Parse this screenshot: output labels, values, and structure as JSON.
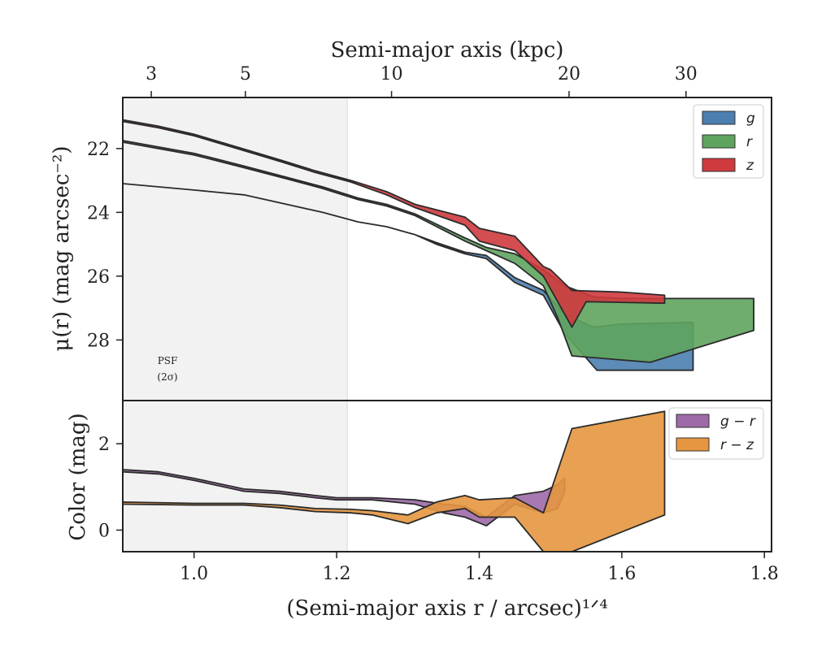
{
  "chart_data": [
    {
      "type": "area",
      "panel": "surface-brightness",
      "ylabel": "μ(r) (mag arcsec⁻²)",
      "ylim": [
        29.9,
        20.4
      ],
      "yticks": [
        "22",
        "24",
        "26",
        "28"
      ],
      "top_axis": {
        "label": "Semi-major axis (kpc)",
        "ticks": [
          {
            "label": "3",
            "x": 0.94
          },
          {
            "label": "5",
            "x": 1.072
          },
          {
            "label": "10",
            "x": 1.277
          },
          {
            "label": "20",
            "x": 1.526
          },
          {
            "label": "30",
            "x": 1.69
          }
        ]
      },
      "psf_label": [
        "PSF",
        "(2σ)"
      ],
      "psf_boundary_x": 1.215,
      "legend": {
        "placement": "top-right",
        "entries": [
          "g",
          "r",
          "z"
        ]
      },
      "series": [
        {
          "name": "g",
          "color": "#4c7fb0",
          "upper": [
            [
              0.9,
              23.1
            ],
            [
              1.0,
              23.3
            ],
            [
              1.07,
              23.45
            ],
            [
              1.13,
              23.75
            ],
            [
              1.18,
              24.0
            ],
            [
              1.23,
              24.3
            ],
            [
              1.27,
              24.45
            ],
            [
              1.31,
              24.7
            ],
            [
              1.34,
              24.95
            ],
            [
              1.38,
              25.25
            ],
            [
              1.41,
              25.35
            ],
            [
              1.45,
              26.05
            ],
            [
              1.49,
              26.45
            ],
            [
              1.52,
              27.2
            ],
            [
              1.56,
              27.6
            ],
            [
              1.6,
              27.5
            ],
            [
              1.7,
              27.45
            ]
          ],
          "lower": [
            [
              0.9,
              23.1
            ],
            [
              1.0,
              23.3
            ],
            [
              1.07,
              23.45
            ],
            [
              1.13,
              23.75
            ],
            [
              1.18,
              24.0
            ],
            [
              1.23,
              24.3
            ],
            [
              1.27,
              24.45
            ],
            [
              1.31,
              24.7
            ],
            [
              1.34,
              25.0
            ],
            [
              1.38,
              25.3
            ],
            [
              1.41,
              25.45
            ],
            [
              1.45,
              26.2
            ],
            [
              1.49,
              26.6
            ],
            [
              1.52,
              27.8
            ],
            [
              1.565,
              28.95
            ],
            [
              1.7,
              28.95
            ]
          ]
        },
        {
          "name": "r",
          "color": "#5fa45e",
          "upper": [
            [
              0.9,
              21.75
            ],
            [
              1.0,
              22.15
            ],
            [
              1.07,
              22.55
            ],
            [
              1.13,
              22.9
            ],
            [
              1.18,
              23.2
            ],
            [
              1.23,
              23.55
            ],
            [
              1.27,
              23.75
            ],
            [
              1.31,
              24.05
            ],
            [
              1.38,
              24.8
            ],
            [
              1.41,
              25.1
            ],
            [
              1.45,
              25.3
            ],
            [
              1.49,
              25.8
            ],
            [
              1.52,
              26.3
            ],
            [
              1.56,
              26.65
            ],
            [
              1.6,
              26.7
            ],
            [
              1.785,
              26.7
            ]
          ],
          "lower": [
            [
              0.9,
              21.8
            ],
            [
              1.0,
              22.2
            ],
            [
              1.07,
              22.6
            ],
            [
              1.13,
              22.95
            ],
            [
              1.18,
              23.25
            ],
            [
              1.23,
              23.6
            ],
            [
              1.27,
              23.8
            ],
            [
              1.31,
              24.1
            ],
            [
              1.38,
              24.9
            ],
            [
              1.41,
              25.2
            ],
            [
              1.45,
              25.6
            ],
            [
              1.49,
              26.3
            ],
            [
              1.51,
              27.3
            ],
            [
              1.53,
              28.5
            ],
            [
              1.64,
              28.7
            ],
            [
              1.785,
              27.7
            ]
          ]
        },
        {
          "name": "z",
          "color": "#cf3a3e",
          "upper": [
            [
              0.9,
              21.1
            ],
            [
              0.95,
              21.3
            ],
            [
              1.0,
              21.55
            ],
            [
              1.06,
              21.95
            ],
            [
              1.12,
              22.35
            ],
            [
              1.17,
              22.7
            ],
            [
              1.22,
              23.0
            ],
            [
              1.27,
              23.35
            ],
            [
              1.31,
              23.75
            ],
            [
              1.38,
              24.15
            ],
            [
              1.4,
              24.5
            ],
            [
              1.45,
              24.75
            ],
            [
              1.49,
              25.7
            ],
            [
              1.5,
              25.8
            ],
            [
              1.53,
              26.45
            ],
            [
              1.6,
              26.5
            ],
            [
              1.66,
              26.6
            ]
          ],
          "lower": [
            [
              0.9,
              21.15
            ],
            [
              0.95,
              21.35
            ],
            [
              1.0,
              21.6
            ],
            [
              1.06,
              22.0
            ],
            [
              1.12,
              22.4
            ],
            [
              1.17,
              22.75
            ],
            [
              1.22,
              23.05
            ],
            [
              1.27,
              23.45
            ],
            [
              1.31,
              23.85
            ],
            [
              1.38,
              24.4
            ],
            [
              1.4,
              24.9
            ],
            [
              1.45,
              25.2
            ],
            [
              1.49,
              26.0
            ],
            [
              1.53,
              27.6
            ],
            [
              1.55,
              26.8
            ],
            [
              1.66,
              26.85
            ]
          ]
        }
      ]
    },
    {
      "type": "area",
      "panel": "color",
      "xlabel": "(Semi-major axis r / arcsec)¹ᐟ⁴",
      "ylabel": "Color (mag)",
      "xlim": [
        0.9,
        1.81
      ],
      "ylim": [
        -0.5,
        3.0
      ],
      "xticks": [
        "1.0",
        "1.2",
        "1.4",
        "1.6",
        "1.8"
      ],
      "yticks": [
        "0",
        "2"
      ],
      "legend": {
        "placement": "top-right",
        "entries": [
          "g − r",
          "r − z"
        ]
      },
      "series": [
        {
          "name": "g − r",
          "color": "#9e6aa7",
          "upper": [
            [
              0.9,
              1.4
            ],
            [
              0.95,
              1.35
            ],
            [
              1.0,
              1.2
            ],
            [
              1.07,
              0.95
            ],
            [
              1.12,
              0.9
            ],
            [
              1.17,
              0.8
            ],
            [
              1.2,
              0.75
            ],
            [
              1.25,
              0.75
            ],
            [
              1.31,
              0.7
            ],
            [
              1.35,
              0.6
            ],
            [
              1.38,
              0.55
            ],
            [
              1.41,
              0.3
            ],
            [
              1.45,
              0.8
            ],
            [
              1.49,
              0.9
            ],
            [
              1.51,
              1.05
            ],
            [
              1.52,
              1.2
            ]
          ],
          "lower": [
            [
              0.9,
              1.35
            ],
            [
              0.95,
              1.3
            ],
            [
              1.0,
              1.15
            ],
            [
              1.07,
              0.9
            ],
            [
              1.12,
              0.85
            ],
            [
              1.17,
              0.75
            ],
            [
              1.2,
              0.7
            ],
            [
              1.25,
              0.7
            ],
            [
              1.31,
              0.6
            ],
            [
              1.35,
              0.4
            ],
            [
              1.38,
              0.3
            ],
            [
              1.41,
              0.1
            ],
            [
              1.45,
              0.6
            ],
            [
              1.49,
              0.4
            ],
            [
              1.51,
              0.5
            ],
            [
              1.52,
              0.9
            ]
          ]
        },
        {
          "name": "r − z",
          "color": "#e69640",
          "upper": [
            [
              0.9,
              0.65
            ],
            [
              1.0,
              0.62
            ],
            [
              1.07,
              0.62
            ],
            [
              1.12,
              0.58
            ],
            [
              1.17,
              0.5
            ],
            [
              1.22,
              0.48
            ],
            [
              1.25,
              0.45
            ],
            [
              1.3,
              0.35
            ],
            [
              1.34,
              0.65
            ],
            [
              1.38,
              0.8
            ],
            [
              1.4,
              0.7
            ],
            [
              1.45,
              0.75
            ],
            [
              1.49,
              0.4
            ],
            [
              1.53,
              2.35
            ],
            [
              1.66,
              2.75
            ]
          ],
          "lower": [
            [
              0.9,
              0.6
            ],
            [
              1.0,
              0.58
            ],
            [
              1.07,
              0.58
            ],
            [
              1.12,
              0.52
            ],
            [
              1.17,
              0.43
            ],
            [
              1.22,
              0.4
            ],
            [
              1.25,
              0.35
            ],
            [
              1.3,
              0.15
            ],
            [
              1.34,
              0.4
            ],
            [
              1.38,
              0.5
            ],
            [
              1.4,
              0.3
            ],
            [
              1.45,
              0.3
            ],
            [
              1.49,
              -0.5
            ],
            [
              1.53,
              -0.5
            ],
            [
              1.66,
              0.35
            ]
          ]
        }
      ]
    }
  ]
}
